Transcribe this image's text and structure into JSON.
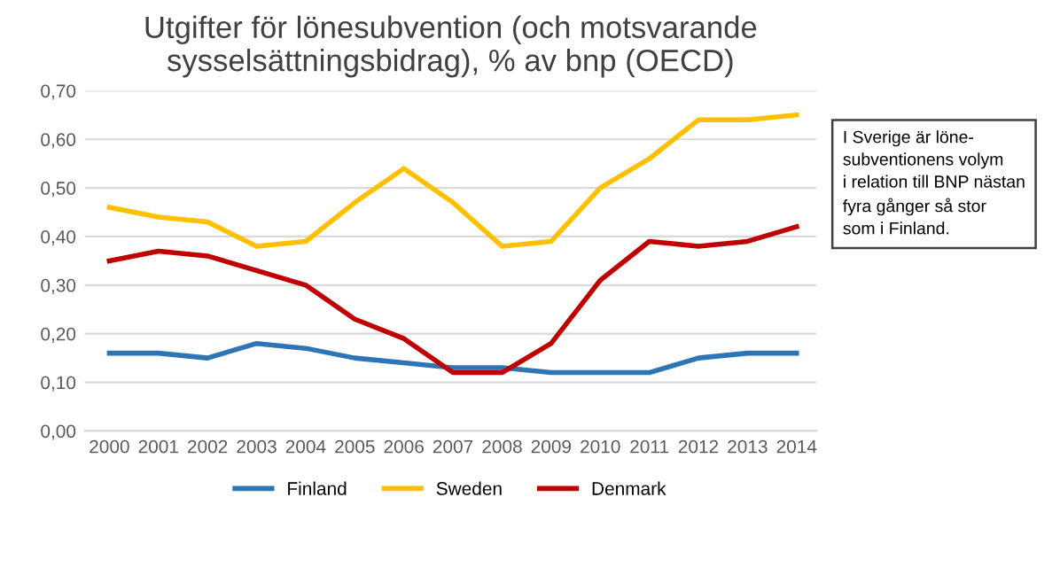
{
  "chart_data": {
    "type": "line",
    "title": "Utgifter för lönesubvention (och motsvarande\nsysselsättningsbidrag), % av bnp (OECD)",
    "categories": [
      "2000",
      "2001",
      "2002",
      "2003",
      "2004",
      "2005",
      "2006",
      "2007",
      "2008",
      "2009",
      "2010",
      "2011",
      "2012",
      "2013",
      "2014"
    ],
    "series": [
      {
        "name": "Finland",
        "color": "#2e75b6",
        "values": [
          0.16,
          0.16,
          0.15,
          0.18,
          0.17,
          0.15,
          0.14,
          0.13,
          0.13,
          0.12,
          0.12,
          0.12,
          0.15,
          0.16,
          0.16
        ]
      },
      {
        "name": "Sweden",
        "color": "#ffc000",
        "values": [
          0.46,
          0.44,
          0.43,
          0.38,
          0.39,
          0.47,
          0.54,
          0.47,
          0.38,
          0.39,
          0.5,
          0.56,
          0.64,
          0.64,
          0.65
        ]
      },
      {
        "name": "Denmark",
        "color": "#c00000",
        "values": [
          0.35,
          0.37,
          0.36,
          0.33,
          0.3,
          0.23,
          0.19,
          0.12,
          0.12,
          0.18,
          0.31,
          0.39,
          0.38,
          0.39,
          0.42
        ]
      }
    ],
    "ylim": [
      0,
      0.7
    ],
    "yticks": [
      {
        "value": 0,
        "label": "0,00"
      },
      {
        "value": 0.1,
        "label": "0,10"
      },
      {
        "value": 0.2,
        "label": "0,20"
      },
      {
        "value": 0.3,
        "label": "0,30"
      },
      {
        "value": 0.4,
        "label": "0,40"
      },
      {
        "value": 0.5,
        "label": "0,50"
      },
      {
        "value": 0.6,
        "label": "0,60"
      },
      {
        "value": 0.7,
        "label": "0,70"
      }
    ],
    "grid": "y",
    "legend": "bottom",
    "marker": "none",
    "line_style": "solid",
    "annotations": [
      "I Sverige är löne-\nsubventionens volym\ni relation till BNP nästan\nfyra gånger så stor\nsom i Finland."
    ]
  }
}
